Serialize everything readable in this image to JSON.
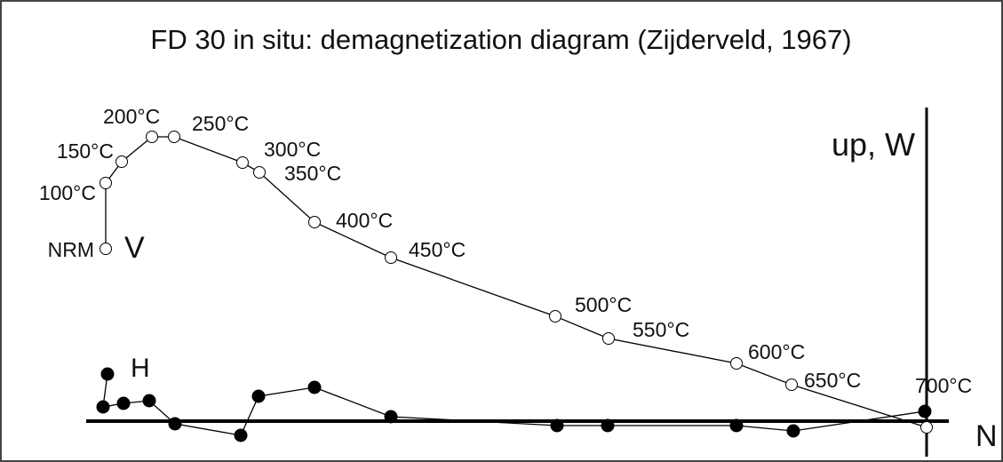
{
  "chart_data": {
    "type": "zijderveld",
    "title": "FD 30 in situ: demagnetization diagram (Zijderveld, 1967)",
    "x_label": "N",
    "y_label": "up, W",
    "categories": [
      "NRM",
      "100°C",
      "150°C",
      "200°C",
      "250°C",
      "300°C",
      "350°C",
      "400°C",
      "450°C",
      "500°C",
      "550°C",
      "600°C",
      "650°C",
      "700°C"
    ],
    "xlim": [
      -104.3,
      8.6
    ],
    "ylim": [
      -4.6,
      47.4
    ],
    "series": [
      {
        "name": "V",
        "color": "#000000",
        "filled": false,
        "x": [
          -92.4,
          -92.4,
          -90.6,
          -87.2,
          -84.7,
          -77.0,
          -75.1,
          -68.9,
          -60.3,
          -41.8,
          -35.8,
          -21.4,
          -15.2,
          0.0
        ],
        "values": [
          19.4,
          26.8,
          29.2,
          32.0,
          32.0,
          29.1,
          28.0,
          22.4,
          18.4,
          11.8,
          9.3,
          6.5,
          4.1,
          -0.7
        ]
      },
      {
        "name": "H",
        "color": "#000000",
        "filled": true,
        "x": [
          -92.2,
          -92.7,
          -90.4,
          -87.5,
          -84.6,
          -77.2,
          -75.2,
          -68.9,
          -60.3,
          -41.6,
          -35.9,
          -21.4,
          -15.0,
          -0.2
        ],
        "values": [
          5.3,
          1.6,
          2.0,
          2.3,
          -0.3,
          -1.6,
          2.8,
          3.8,
          0.5,
          -0.5,
          -0.5,
          -0.5,
          -1.1,
          1.1
        ]
      }
    ]
  }
}
